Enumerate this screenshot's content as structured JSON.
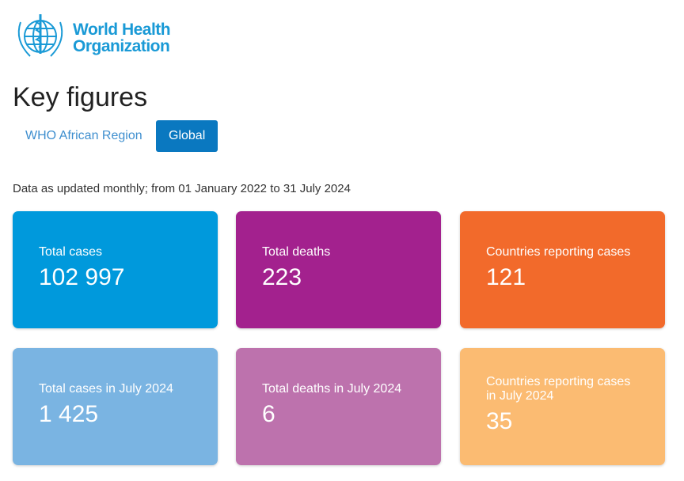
{
  "logo": {
    "line1": "World Health",
    "line2": "Organization"
  },
  "title": "Key figures",
  "tabs": [
    {
      "label": "WHO African Region",
      "active": false
    },
    {
      "label": "Global",
      "active": true
    }
  ],
  "note": "Data as updated monthly; from 01 January 2022 to 31 July 2024",
  "cards": [
    {
      "label": "Total cases",
      "value": "102 997",
      "color": "#0099dc"
    },
    {
      "label": "Total deaths",
      "value": "223",
      "color": "#a3218e"
    },
    {
      "label": "Countries reporting cases",
      "value": "121",
      "color": "#f26a2b"
    },
    {
      "label": "Total cases in July 2024",
      "value": "1 425",
      "color": "#7ab4e2"
    },
    {
      "label": "Total deaths in July 2024",
      "value": "6",
      "color": "#bd72ad"
    },
    {
      "label": "Countries reporting cases in July 2024",
      "value": "35",
      "color": "#fbbb72"
    }
  ]
}
